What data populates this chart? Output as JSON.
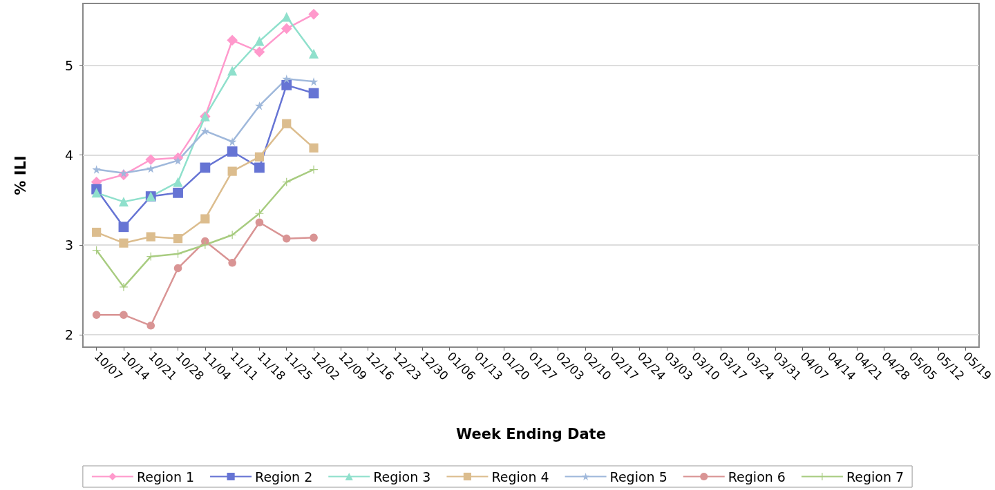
{
  "chart_data": {
    "type": "line",
    "xlabel": "Week Ending Date",
    "ylabel": "% ILI",
    "categories": [
      "10/07",
      "10/14",
      "10/21",
      "10/28",
      "11/04",
      "11/11",
      "11/18",
      "11/25",
      "12/02",
      "12/09",
      "12/16",
      "12/23",
      "12/30",
      "01/06",
      "01/13",
      "01/20",
      "01/27",
      "02/03",
      "02/10",
      "02/17",
      "02/24",
      "03/03",
      "03/10",
      "03/17",
      "03/24",
      "03/31",
      "04/07",
      "04/14",
      "04/21",
      "04/28",
      "05/05",
      "05/12",
      "05/19"
    ],
    "series": [
      {
        "name": "Region 1",
        "color": "#ff99cc",
        "marker": "diamond",
        "values": [
          3.7,
          3.78,
          3.95,
          3.97,
          4.43,
          5.28,
          5.15,
          5.41,
          5.57,
          null,
          null,
          null,
          null,
          null,
          null,
          null,
          null,
          null,
          null,
          null,
          null,
          null,
          null,
          null,
          null,
          null,
          null,
          null,
          null,
          null,
          null,
          null,
          null
        ]
      },
      {
        "name": "Region 2",
        "color": "#6674d4",
        "marker": "square",
        "values": [
          3.62,
          3.2,
          3.54,
          3.58,
          3.86,
          4.04,
          3.86,
          4.78,
          4.69,
          null,
          null,
          null,
          null,
          null,
          null,
          null,
          null,
          null,
          null,
          null,
          null,
          null,
          null,
          null,
          null,
          null,
          null,
          null,
          null,
          null,
          null,
          null,
          null
        ]
      },
      {
        "name": "Region 3",
        "color": "#8fe0cc",
        "marker": "triangle",
        "values": [
          3.58,
          3.48,
          3.54,
          3.7,
          4.43,
          4.94,
          5.27,
          5.54,
          5.13,
          null,
          null,
          null,
          null,
          null,
          null,
          null,
          null,
          null,
          null,
          null,
          null,
          null,
          null,
          null,
          null,
          null,
          null,
          null,
          null,
          null,
          null,
          null,
          null
        ]
      },
      {
        "name": "Region 4",
        "color": "#dcbd8e",
        "marker": "square",
        "values": [
          3.14,
          3.02,
          3.09,
          3.07,
          3.29,
          3.82,
          3.98,
          4.35,
          4.08,
          null,
          null,
          null,
          null,
          null,
          null,
          null,
          null,
          null,
          null,
          null,
          null,
          null,
          null,
          null,
          null,
          null,
          null,
          null,
          null,
          null,
          null,
          null,
          null
        ]
      },
      {
        "name": "Region 5",
        "color": "#9fb8db",
        "marker": "star",
        "values": [
          3.84,
          3.8,
          3.85,
          3.94,
          4.27,
          4.15,
          4.55,
          4.85,
          4.82,
          null,
          null,
          null,
          null,
          null,
          null,
          null,
          null,
          null,
          null,
          null,
          null,
          null,
          null,
          null,
          null,
          null,
          null,
          null,
          null,
          null,
          null,
          null,
          null
        ]
      },
      {
        "name": "Region 6",
        "color": "#d99494",
        "marker": "circle",
        "values": [
          2.22,
          2.22,
          2.1,
          2.74,
          3.04,
          2.8,
          3.25,
          3.07,
          3.08,
          null,
          null,
          null,
          null,
          null,
          null,
          null,
          null,
          null,
          null,
          null,
          null,
          null,
          null,
          null,
          null,
          null,
          null,
          null,
          null,
          null,
          null,
          null,
          null
        ]
      },
      {
        "name": "Region 7",
        "color": "#a8cc80",
        "marker": "cross",
        "values": [
          2.94,
          2.53,
          2.87,
          2.9,
          3.0,
          3.11,
          3.35,
          3.7,
          3.84,
          null,
          null,
          null,
          null,
          null,
          null,
          null,
          null,
          null,
          null,
          null,
          null,
          null,
          null,
          null,
          null,
          null,
          null,
          null,
          null,
          null,
          null,
          null,
          null
        ]
      }
    ],
    "ylim": [
      1.86,
      5.69
    ],
    "yticks": [
      2,
      3,
      4,
      5
    ],
    "grid": "y",
    "legend": "bottom",
    "line_style": "solid"
  }
}
